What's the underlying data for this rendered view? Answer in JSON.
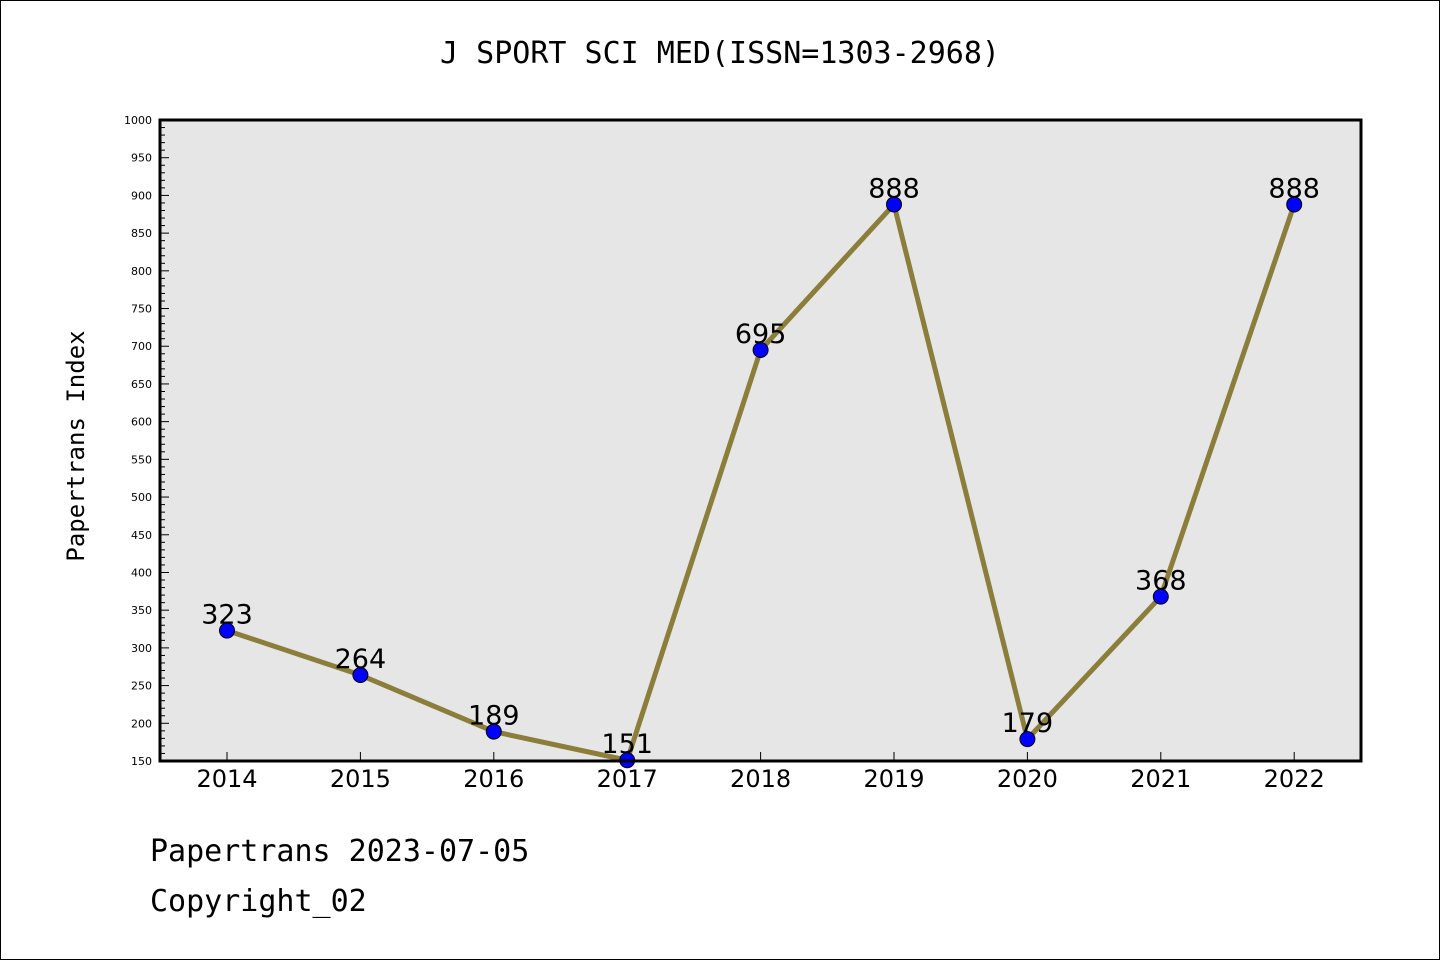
{
  "chart_data": {
    "type": "line",
    "title": "J SPORT SCI MED(ISSN=1303-2968)",
    "xlabel": "",
    "ylabel": "Papertrans Index",
    "categories": [
      "2014",
      "2015",
      "2016",
      "2017",
      "2018",
      "2019",
      "2020",
      "2021",
      "2022"
    ],
    "series": [
      {
        "values": [
          323,
          264,
          189,
          151,
          695,
          888,
          179,
          368,
          888
        ]
      }
    ],
    "data_labels": [
      "323",
      "264",
      "189",
      "151",
      "695",
      "888",
      "179",
      "368",
      "888"
    ],
    "ylim": [
      150,
      1000
    ],
    "yticks": [
      150,
      200,
      250,
      300,
      350,
      400,
      450,
      500,
      550,
      600,
      650,
      700,
      750,
      800,
      850,
      900,
      950,
      1000
    ],
    "grid": false,
    "colors": {
      "line": "#8B7D3A",
      "marker": "#0000FF",
      "plot_background": "#E6E6E6"
    }
  },
  "footer": {
    "date_line": "Papertrans 2023-07-05",
    "copyright": "Copyright_02"
  }
}
